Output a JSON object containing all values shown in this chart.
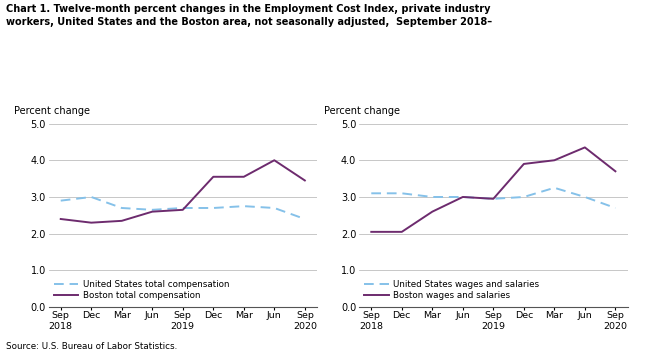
{
  "title_line1": "Chart 1. Twelve-month percent changes in the Employment Cost Index, private industry",
  "title_line2": "workers, United States and the Boston area, not seasonally adjusted,  September 2018–",
  "x_labels": [
    "Sep\n2018",
    "Dec",
    "Mar",
    "Jun",
    "Sep\n2019",
    "Dec",
    "Mar",
    "Jun",
    "Sep\n2020"
  ],
  "ylabel": "Percent change",
  "ylim": [
    0.0,
    5.0
  ],
  "yticks": [
    0.0,
    1.0,
    2.0,
    3.0,
    4.0,
    5.0
  ],
  "source": "Source: U.S. Bureau of Labor Statistics.",
  "chart1": {
    "us_total": [
      2.9,
      3.0,
      2.7,
      2.65,
      2.7,
      2.7,
      2.75,
      2.7,
      2.4
    ],
    "boston_total": [
      2.4,
      2.3,
      2.35,
      2.6,
      2.65,
      3.55,
      3.55,
      4.0,
      3.45
    ],
    "us_label": "United States total compensation",
    "boston_label": "Boston total compensation"
  },
  "chart2": {
    "us_wages": [
      3.1,
      3.1,
      3.0,
      3.0,
      2.95,
      3.0,
      3.25,
      3.0,
      2.7
    ],
    "boston_wages": [
      2.05,
      2.05,
      2.6,
      3.0,
      2.95,
      3.9,
      4.0,
      4.35,
      3.7
    ],
    "us_label": "United States wages and salaries",
    "boston_label": "Boston wages and salaries"
  },
  "us_color": "#85C1E9",
  "boston_color": "#6D2B6E",
  "us_linestyle": "dashed",
  "boston_linestyle": "solid",
  "linewidth": 1.4,
  "grid_color": "#b0b0b0",
  "background_color": "#ffffff"
}
